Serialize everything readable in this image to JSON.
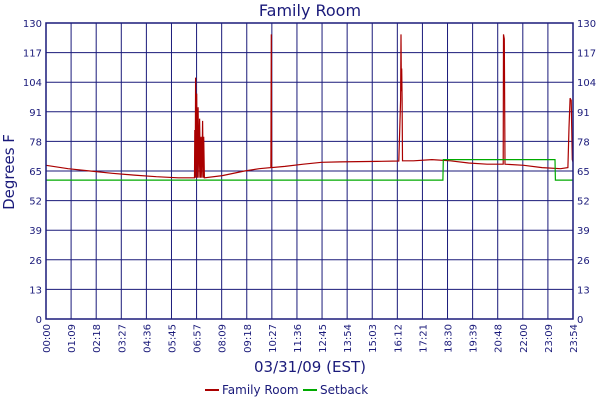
{
  "chart_data": {
    "type": "line",
    "title": "Family Room",
    "xlabel": "03/31/09 (EST)",
    "ylabel": "Degrees F",
    "ylim": [
      0,
      130
    ],
    "yticks": [
      "0",
      "13",
      "26",
      "39",
      "52",
      "65",
      "78",
      "91",
      "104",
      "117",
      "130"
    ],
    "xticks": [
      "00:00",
      "01:09",
      "02:18",
      "03:27",
      "04:36",
      "05:45",
      "06:57",
      "08:09",
      "09:18",
      "10:27",
      "11:36",
      "12:45",
      "13:54",
      "15:03",
      "16:12",
      "17:21",
      "18:30",
      "19:39",
      "20:48",
      "22:00",
      "23:09",
      "23:54"
    ],
    "xlim_minutes": [
      0,
      1434
    ],
    "grid": true,
    "legend_position": "bottom-center",
    "series": [
      {
        "name": "Family Room",
        "color": "#aa0000",
        "points": [
          [
            0,
            67.5
          ],
          [
            60,
            66
          ],
          [
            120,
            65
          ],
          [
            180,
            64
          ],
          [
            240,
            63.2
          ],
          [
            300,
            62.5
          ],
          [
            360,
            62
          ],
          [
            400,
            62
          ],
          [
            404,
            62
          ],
          [
            405,
            83
          ],
          [
            406,
            62
          ],
          [
            407,
            106
          ],
          [
            408,
            62
          ],
          [
            410,
            99
          ],
          [
            412,
            62
          ],
          [
            414,
            93
          ],
          [
            416,
            62
          ],
          [
            418,
            88
          ],
          [
            420,
            62
          ],
          [
            422,
            80
          ],
          [
            424,
            62
          ],
          [
            426,
            87
          ],
          [
            428,
            62
          ],
          [
            429,
            80
          ],
          [
            431,
            62
          ],
          [
            480,
            63
          ],
          [
            540,
            65
          ],
          [
            580,
            66
          ],
          [
            612,
            66.5
          ],
          [
            613,
            125
          ],
          [
            614,
            66.5
          ],
          [
            650,
            67
          ],
          [
            700,
            68
          ],
          [
            750,
            68.8
          ],
          [
            800,
            69
          ],
          [
            900,
            69.2
          ],
          [
            960,
            69.4
          ],
          [
            965,
            96
          ],
          [
            966,
            125
          ],
          [
            967,
            100
          ],
          [
            968,
            110
          ],
          [
            969,
            97
          ],
          [
            970,
            69.5
          ],
          [
            1000,
            69.5
          ],
          [
            1050,
            70
          ],
          [
            1100,
            69.5
          ],
          [
            1150,
            68.5
          ],
          [
            1200,
            68
          ],
          [
            1244,
            68
          ],
          [
            1245,
            125
          ],
          [
            1247,
            123
          ],
          [
            1249,
            68
          ],
          [
            1300,
            67.5
          ],
          [
            1350,
            66.5
          ],
          [
            1400,
            66
          ],
          [
            1420,
            66.5
          ],
          [
            1423,
            84
          ],
          [
            1426,
            97
          ],
          [
            1429,
            96
          ],
          [
            1432,
            70
          ],
          [
            1434,
            69
          ]
        ]
      },
      {
        "name": "Setback",
        "color": "#00aa00",
        "points": [
          [
            0,
            61
          ],
          [
            1080,
            61
          ],
          [
            1081,
            70
          ],
          [
            1385,
            70
          ],
          [
            1386,
            61
          ],
          [
            1434,
            61
          ]
        ]
      }
    ]
  }
}
